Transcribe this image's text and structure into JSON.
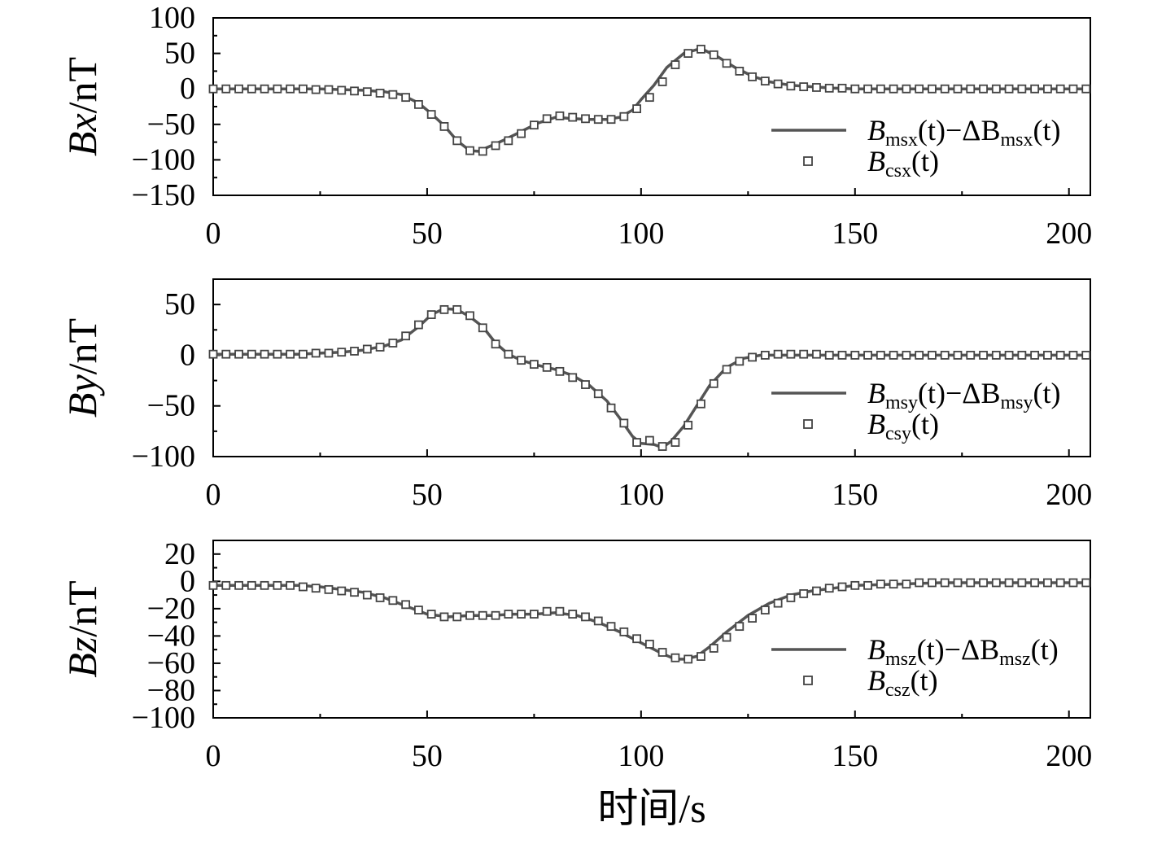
{
  "x_axis_label": "时间/s",
  "chart_data": [
    {
      "type": "line",
      "ylabel": "Bx/nT",
      "ylabel_main": "Bx",
      "ylabel_unit": "/nT",
      "xlim": [
        0,
        205
      ],
      "ylim": [
        -150,
        100
      ],
      "x_ticks": [
        0,
        50,
        100,
        150,
        200
      ],
      "y_ticks": [
        100,
        50,
        0,
        -50,
        -100,
        -150
      ],
      "x_tick_labels": [
        "0",
        "50",
        "100",
        "150",
        "200"
      ],
      "y_tick_labels": [
        "100",
        "50",
        "0",
        "−50",
        "−100",
        "−150"
      ],
      "legend_position": "right",
      "legend": [
        {
          "base": "B",
          "sub": "msx",
          "rest": "(t)−ΔB",
          "sub2": "msx",
          "end": "(t)",
          "marker": "line"
        },
        {
          "base": "B",
          "sub": "csx",
          "rest": "(t)",
          "sub2": "",
          "end": "",
          "marker": "square"
        }
      ],
      "series": [
        {
          "x": [
            0,
            5,
            10,
            15,
            20,
            25,
            30,
            35,
            40,
            44,
            48,
            51,
            54,
            57,
            60,
            62,
            65,
            68,
            72,
            76,
            80,
            84,
            88,
            92,
            95,
            98,
            100,
            103,
            106,
            110,
            114,
            118,
            122,
            126,
            130,
            135,
            140,
            145,
            150,
            160,
            170,
            180,
            190,
            200,
            205
          ],
          "y": [
            0,
            0,
            0,
            0,
            0,
            0,
            -1,
            -2,
            -4,
            -8,
            -20,
            -35,
            -52,
            -73,
            -87,
            -88,
            -80,
            -72,
            -60,
            -48,
            -40,
            -42,
            -43,
            -43,
            -40,
            -30,
            -15,
            5,
            30,
            50,
            57,
            45,
            30,
            18,
            10,
            5,
            3,
            1,
            0,
            0,
            0,
            0,
            0,
            0,
            0
          ]
        },
        {
          "x": [
            0,
            3,
            6,
            9,
            12,
            15,
            18,
            21,
            24,
            27,
            30,
            33,
            36,
            39,
            42,
            45,
            48,
            51,
            54,
            57,
            60,
            63,
            66,
            69,
            72,
            75,
            78,
            81,
            84,
            87,
            90,
            93,
            96,
            99,
            102,
            105,
            108,
            111,
            114,
            117,
            120,
            123,
            126,
            129,
            132,
            135,
            138,
            141,
            144,
            147,
            150,
            153,
            156,
            159,
            162,
            165,
            168,
            171,
            174,
            177,
            180,
            183,
            186,
            189,
            192,
            195,
            198,
            201,
            204
          ],
          "y": [
            0,
            0,
            0,
            0,
            0,
            0,
            0,
            0,
            -1,
            -1,
            -2,
            -3,
            -4,
            -6,
            -8,
            -12,
            -22,
            -36,
            -53,
            -73,
            -87,
            -88,
            -80,
            -73,
            -63,
            -51,
            -42,
            -38,
            -40,
            -42,
            -43,
            -43,
            -39,
            -28,
            -12,
            10,
            34,
            50,
            56,
            48,
            36,
            25,
            17,
            11,
            7,
            4,
            3,
            2,
            1,
            1,
            0,
            0,
            0,
            0,
            0,
            0,
            0,
            0,
            0,
            0,
            0,
            0,
            0,
            0,
            0,
            0,
            0,
            0,
            0
          ]
        }
      ]
    },
    {
      "type": "line",
      "ylabel": "By/nT",
      "ylabel_main": "By",
      "ylabel_unit": "/nT",
      "xlim": [
        0,
        205
      ],
      "ylim": [
        -100,
        75
      ],
      "x_ticks": [
        0,
        50,
        100,
        150,
        200
      ],
      "y_ticks": [
        50,
        0,
        -50,
        -100
      ],
      "x_tick_labels": [
        "0",
        "50",
        "100",
        "150",
        "200"
      ],
      "y_tick_labels": [
        "50",
        "0",
        "−50",
        "−100"
      ],
      "legend_position": "right",
      "legend": [
        {
          "base": "B",
          "sub": "msy",
          "rest": "(t)−ΔB",
          "sub2": "msy",
          "end": "(t)",
          "marker": "line"
        },
        {
          "base": "B",
          "sub": "csy",
          "rest": "(t)",
          "sub2": "",
          "end": "",
          "marker": "square"
        }
      ],
      "series": [
        {
          "x": [
            0,
            5,
            10,
            15,
            20,
            25,
            30,
            35,
            40,
            44,
            48,
            51,
            54,
            57,
            60,
            63,
            66,
            69,
            72,
            76,
            80,
            84,
            88,
            92,
            95,
            98,
            100,
            103,
            105,
            107,
            110,
            113,
            116,
            120,
            124,
            128,
            132,
            136,
            140,
            150,
            160,
            170,
            180,
            190,
            200,
            205
          ],
          "y": [
            1,
            1,
            1,
            1,
            1,
            2,
            3,
            5,
            9,
            15,
            28,
            40,
            46,
            45,
            38,
            28,
            12,
            1,
            -5,
            -10,
            -14,
            -20,
            -30,
            -45,
            -62,
            -80,
            -87,
            -88,
            -91,
            -85,
            -70,
            -50,
            -30,
            -12,
            -3,
            0,
            0,
            0,
            0,
            0,
            0,
            0,
            0,
            0,
            0,
            0
          ]
        },
        {
          "x": [
            0,
            3,
            6,
            9,
            12,
            15,
            18,
            21,
            24,
            27,
            30,
            33,
            36,
            39,
            42,
            45,
            48,
            51,
            54,
            57,
            60,
            63,
            66,
            69,
            72,
            75,
            78,
            81,
            84,
            87,
            90,
            93,
            96,
            99,
            102,
            105,
            108,
            111,
            114,
            117,
            120,
            123,
            126,
            129,
            132,
            135,
            138,
            141,
            144,
            147,
            150,
            153,
            156,
            159,
            162,
            165,
            168,
            171,
            174,
            177,
            180,
            183,
            186,
            189,
            192,
            195,
            198,
            201,
            204
          ],
          "y": [
            1,
            1,
            1,
            1,
            1,
            1,
            1,
            1,
            2,
            2,
            3,
            4,
            6,
            8,
            12,
            19,
            30,
            40,
            45,
            45,
            39,
            27,
            11,
            1,
            -5,
            -9,
            -12,
            -16,
            -22,
            -29,
            -38,
            -52,
            -67,
            -86,
            -84,
            -90,
            -86,
            -69,
            -48,
            -28,
            -14,
            -6,
            -2,
            0,
            1,
            1,
            1,
            1,
            0,
            0,
            0,
            0,
            0,
            0,
            0,
            0,
            0,
            0,
            0,
            0,
            0,
            0,
            0,
            0,
            0,
            0,
            0,
            0,
            0
          ]
        }
      ]
    },
    {
      "type": "line",
      "ylabel": "Bz/nT",
      "ylabel_main": "Bz",
      "ylabel_unit": "/nT",
      "xlim": [
        0,
        205
      ],
      "ylim": [
        -100,
        30
      ],
      "x_ticks": [
        0,
        50,
        100,
        150,
        200
      ],
      "y_ticks": [
        20,
        0,
        -20,
        -40,
        -60,
        -80,
        -100
      ],
      "x_tick_labels": [
        "0",
        "50",
        "100",
        "150",
        "200"
      ],
      "y_tick_labels": [
        "20",
        "0",
        "−20",
        "−40",
        "−60",
        "−80",
        "−100"
      ],
      "legend_position": "right",
      "legend": [
        {
          "base": "B",
          "sub": "msz",
          "rest": "(t)−ΔB",
          "sub2": "msz",
          "end": "(t)",
          "marker": "line"
        },
        {
          "base": "B",
          "sub": "csz",
          "rest": "(t)",
          "sub2": "",
          "end": "",
          "marker": "square"
        }
      ],
      "series": [
        {
          "x": [
            0,
            5,
            10,
            15,
            20,
            25,
            30,
            35,
            40,
            45,
            50,
            55,
            60,
            65,
            70,
            75,
            80,
            85,
            90,
            95,
            100,
            105,
            108,
            110,
            113,
            116,
            120,
            125,
            130,
            135,
            140,
            145,
            150,
            160,
            170,
            180,
            190,
            200,
            205
          ],
          "y": [
            -3,
            -3,
            -3,
            -3,
            -3,
            -4,
            -6,
            -8,
            -12,
            -18,
            -24,
            -26,
            -25,
            -25,
            -24,
            -24,
            -23,
            -25,
            -30,
            -37,
            -45,
            -53,
            -57,
            -57,
            -55,
            -48,
            -37,
            -25,
            -16,
            -10,
            -7,
            -5,
            -3,
            -2,
            -1,
            -1,
            -1,
            -1,
            -1
          ]
        },
        {
          "x": [
            0,
            3,
            6,
            9,
            12,
            15,
            18,
            21,
            24,
            27,
            30,
            33,
            36,
            39,
            42,
            45,
            48,
            51,
            54,
            57,
            60,
            63,
            66,
            69,
            72,
            75,
            78,
            81,
            84,
            87,
            90,
            93,
            96,
            99,
            102,
            105,
            108,
            111,
            114,
            117,
            120,
            123,
            126,
            129,
            132,
            135,
            138,
            141,
            144,
            147,
            150,
            153,
            156,
            159,
            162,
            165,
            168,
            171,
            174,
            177,
            180,
            183,
            186,
            189,
            192,
            195,
            198,
            201,
            204
          ],
          "y": [
            -3,
            -3,
            -3,
            -3,
            -3,
            -3,
            -3,
            -4,
            -5,
            -6,
            -7,
            -8,
            -10,
            -12,
            -14,
            -17,
            -21,
            -24,
            -26,
            -26,
            -25,
            -25,
            -25,
            -24,
            -24,
            -24,
            -22,
            -22,
            -24,
            -26,
            -29,
            -33,
            -37,
            -42,
            -46,
            -52,
            -56,
            -57,
            -55,
            -49,
            -41,
            -33,
            -27,
            -21,
            -16,
            -12,
            -9,
            -7,
            -5,
            -4,
            -3,
            -3,
            -2,
            -2,
            -2,
            -1,
            -1,
            -1,
            -1,
            -1,
            -1,
            -1,
            -1,
            -1,
            -1,
            -1,
            -1,
            -1,
            -1
          ]
        }
      ]
    }
  ]
}
